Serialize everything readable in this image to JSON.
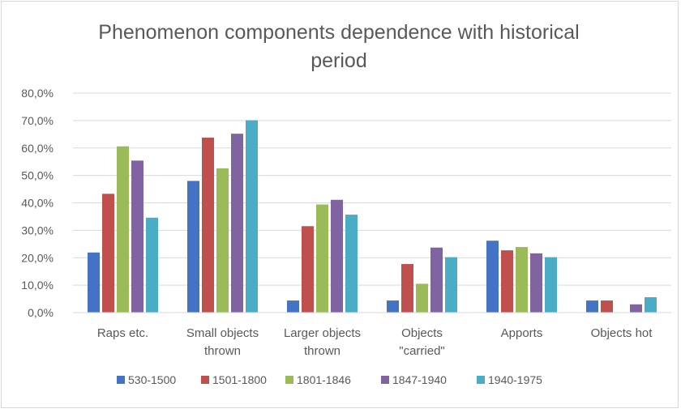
{
  "chart_data": {
    "type": "bar",
    "title_lines": [
      "Phenomenon components dependence with historical",
      "period"
    ],
    "xlabel": "",
    "ylabel": "",
    "ylim": [
      0,
      0.8
    ],
    "ytick_values": [
      0,
      0.1,
      0.2,
      0.3,
      0.4,
      0.5,
      0.6,
      0.7,
      0.8
    ],
    "ytick_labels": [
      "0,0%",
      "10,0%",
      "20,0%",
      "30,0%",
      "40,0%",
      "50,0%",
      "60,0%",
      "70,0%",
      "80,0%"
    ],
    "grid": true,
    "legend_position": "bottom",
    "categories": [
      [
        "Raps etc."
      ],
      [
        "Small objects",
        "thrown"
      ],
      [
        "Larger objects",
        "thrown"
      ],
      [
        "Objects",
        "\"carried\""
      ],
      [
        "Apports"
      ],
      [
        "Objects hot"
      ]
    ],
    "series": [
      {
        "name": "530-1500",
        "color": "#4472C4",
        "values": [
          0.219,
          0.48,
          0.044,
          0.044,
          0.262,
          0.044
        ]
      },
      {
        "name": "1501-1800",
        "color": "#C0504D",
        "values": [
          0.433,
          0.638,
          0.315,
          0.177,
          0.227,
          0.044
        ]
      },
      {
        "name": "1801-1846",
        "color": "#9BBB59",
        "values": [
          0.606,
          0.526,
          0.394,
          0.105,
          0.239,
          0
        ]
      },
      {
        "name": "1847-1940",
        "color": "#8064A2",
        "values": [
          0.554,
          0.652,
          0.411,
          0.237,
          0.216,
          0.03
        ]
      },
      {
        "name": "1940-1975",
        "color": "#4BACC6",
        "values": [
          0.346,
          0.701,
          0.357,
          0.202,
          0.202,
          0.056
        ]
      }
    ]
  }
}
